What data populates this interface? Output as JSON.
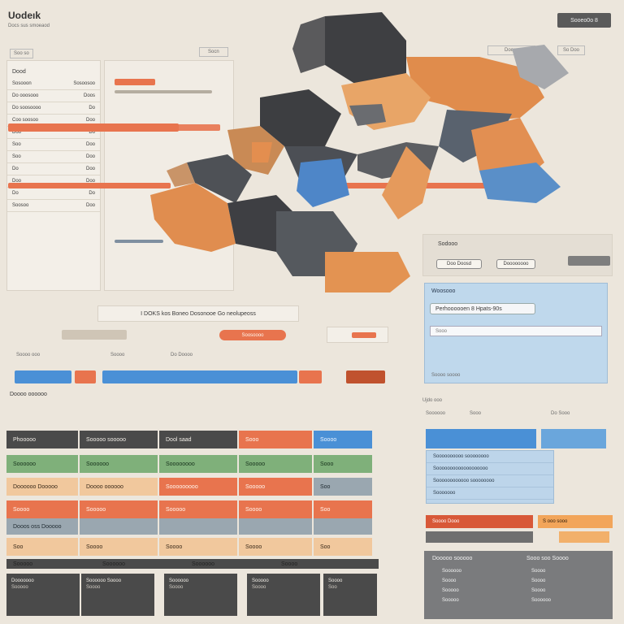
{
  "app": {
    "title": "Uodeık",
    "subtitle": "Docs sus smoeaod",
    "top_button": "Sooeo0o   8"
  },
  "left_panel": {
    "header_left": "Dood",
    "rows": [
      {
        "a": "Sosooon",
        "b": "Sosoosoo"
      },
      {
        "a": "Do ooosooo",
        "b": "Doos"
      },
      {
        "a": "Do soosoooo",
        "b": "Do"
      },
      {
        "a": "Coo soosoo",
        "b": "Doo"
      },
      {
        "a": "Doo",
        "b": "Do"
      },
      {
        "a": "Soo",
        "b": "Doo"
      },
      {
        "a": "Soo",
        "b": "Doo"
      },
      {
        "a": "Do",
        "b": "Doo"
      },
      {
        "a": "Doo",
        "b": "Doo"
      },
      {
        "a": "Do",
        "b": "Do"
      },
      {
        "a": "Soosoo",
        "b": "Doo"
      }
    ]
  },
  "map_header_labels": [
    "Soo so",
    "Socn",
    "Doosp",
    "So Doo"
  ],
  "banner": {
    "text": "I DOKS kos Boneo Dosonooe Go neolupeoss"
  },
  "sliders": {
    "orange_pill": "Soosoooo"
  },
  "right_card": {
    "title": "Sodooo",
    "btn1": "Doo Doosd",
    "btn2": "Doooooooo"
  },
  "search_card": {
    "title": "Woosooo",
    "field_value": "Perhoooooen 8 Hpats-90s",
    "placeholder": "Sooo",
    "footer": "Soooo soooo"
  },
  "timeline": {
    "labels": [
      "Soooo ooo",
      "Soooo",
      "Do Doooo"
    ]
  },
  "table": {
    "header": "Doooo oooooo",
    "rows": [
      [
        "Phooooo",
        "Sooooo sooooo",
        "Dool saad",
        "Sooo",
        "Soooo"
      ],
      [
        "Soooooo",
        "Soooooo",
        "Soooooooo",
        "Sooooo",
        "Sooo"
      ],
      [
        "Doooooo Dooooo",
        "Doooo oooooo",
        "Sooooooooo",
        "Sooooo",
        "Soo"
      ],
      [
        "Soooo",
        "Sooooo",
        "Sooooo",
        "Soooo",
        "Soo"
      ],
      [
        "Dooos oss Dooooo",
        "",
        "",
        "",
        ""
      ],
      [
        "Soo",
        "Soooo",
        "Soooo",
        "Soooo",
        "Soo"
      ]
    ],
    "footer_cols": [
      "Sooooo",
      "Soooooo",
      "Soooooo",
      "Soooo"
    ],
    "footer_cells": [
      [
        "Dooooooo",
        "Sooooo"
      ],
      [
        "Soooooo Soooo",
        "Soooo"
      ],
      [
        "Soooooo",
        "Soooo"
      ],
      [
        "Sooooo",
        "Soooo"
      ],
      [
        "Soooo",
        "Soo"
      ]
    ]
  },
  "right_list": {
    "title": "Ujdo ooo",
    "cols": [
      "Soooooo",
      "Sooo",
      "Do Sooo"
    ],
    "items": [
      "Soooooooooo soooooooo",
      "Sooooooooooooooooooo",
      "Soooooooooooo soooooooo",
      "Sooooooo"
    ],
    "red_label": "Soooo Dooo",
    "orange_label": "S ooo sooo"
  },
  "bottom_right": {
    "left_header": "Dooooo sooooo",
    "right_header": "Sooo soo Soooo",
    "left_items": [
      "Soooooo",
      "Soooo",
      "Sooooo",
      "Sooooo"
    ],
    "right_items": [
      "Soooo",
      "Soooo",
      "Soooo",
      "Soooooo"
    ]
  }
}
